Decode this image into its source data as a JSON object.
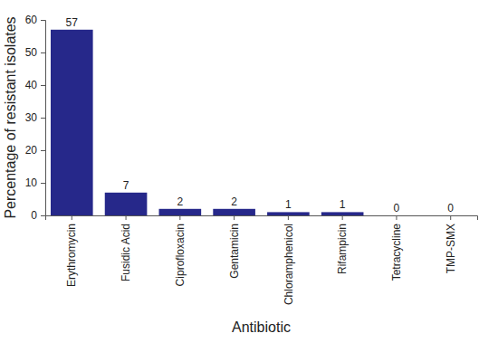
{
  "chart_data": {
    "type": "bar",
    "x_label": "Antibiotic",
    "y_label": "Percentage of resistant isolates",
    "categories": [
      "Erythromycin",
      "Fusidic Acid",
      "Ciprofloxacin",
      "Gentamicin",
      "Chloramphenicol",
      "Rifampicin",
      "Tetracycline",
      "TMP-SMX"
    ],
    "values": [
      57,
      7,
      2,
      2,
      1,
      1,
      0,
      0
    ],
    "color": "#26288a",
    "ylim": [
      0,
      60
    ],
    "yticks": [
      0,
      10,
      20,
      30,
      40,
      50,
      60
    ],
    "grid": false,
    "data_labels": true
  }
}
